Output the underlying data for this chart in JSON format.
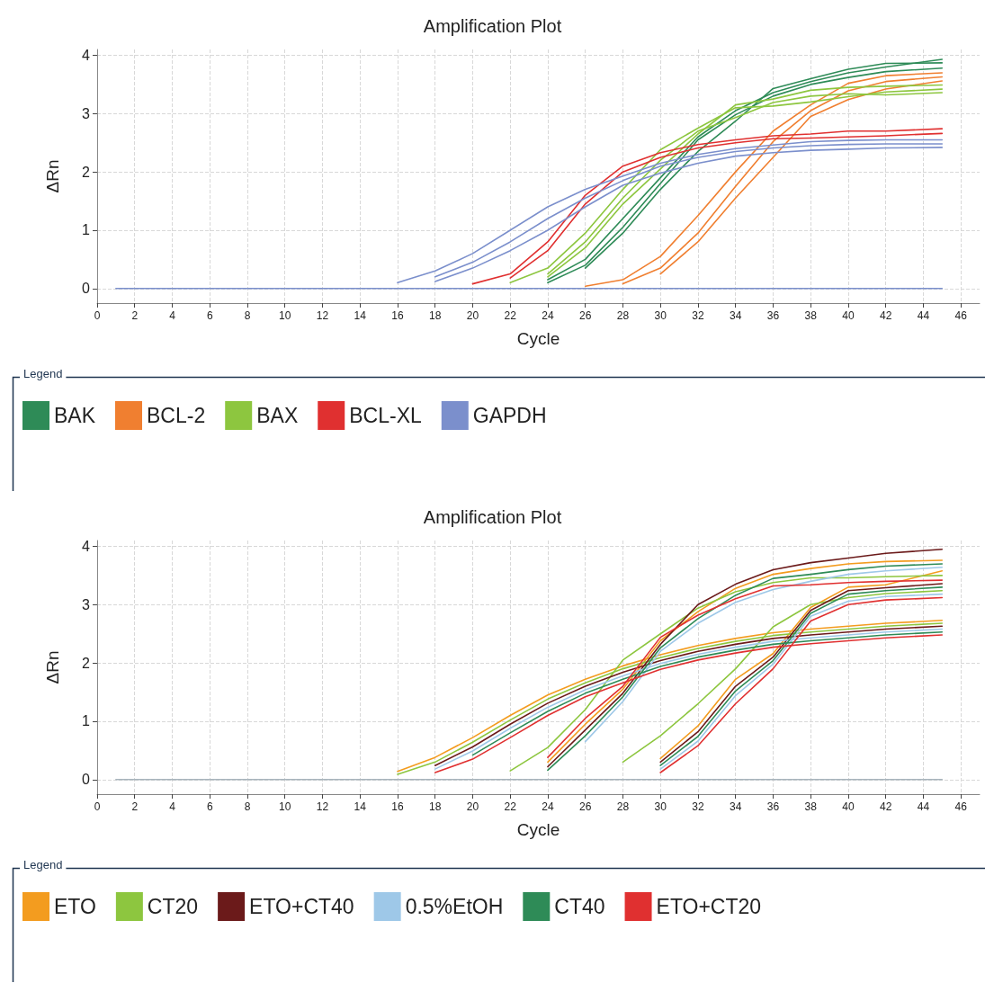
{
  "chart_data": [
    {
      "type": "line",
      "title": "Amplification Plot",
      "xlabel": "Cycle",
      "ylabel": "ΔRn",
      "legend_title": "Legend",
      "legend": "bottom",
      "grid": true,
      "marker": "none",
      "line_style": "solid",
      "xlim": [
        0,
        47
      ],
      "xticks": [
        0,
        2,
        4,
        6,
        8,
        10,
        12,
        14,
        16,
        18,
        20,
        22,
        24,
        26,
        28,
        30,
        32,
        34,
        36,
        38,
        40,
        42,
        44,
        46
      ],
      "ylim": [
        -0.25,
        4.1
      ],
      "yticks": [
        0,
        1,
        2,
        3,
        4
      ],
      "series": [
        {
          "color": "#7b8fcc",
          "x": [
            1,
            45
          ],
          "values": [
            0,
            0
          ]
        },
        {
          "name": "BAK",
          "color": "#2e8b57",
          "x": [
            24,
            26,
            28,
            30,
            32,
            34,
            36,
            38,
            40,
            42,
            45
          ],
          "values": [
            0.15,
            0.5,
            1.2,
            1.9,
            2.6,
            3.05,
            3.36,
            3.55,
            3.7,
            3.8,
            3.93
          ]
        },
        {
          "color": "#2e8b57",
          "x": [
            24,
            26,
            28,
            30,
            32,
            34,
            36,
            38,
            40,
            42,
            45
          ],
          "values": [
            0.1,
            0.4,
            1.05,
            1.8,
            2.55,
            2.98,
            3.3,
            3.5,
            3.62,
            3.72,
            3.78
          ]
        },
        {
          "color": "#2e8b57",
          "x": [
            26,
            28,
            30,
            32,
            34,
            36,
            38,
            40,
            42,
            45
          ],
          "values": [
            0.35,
            0.95,
            1.7,
            2.35,
            2.87,
            3.43,
            3.6,
            3.76,
            3.86,
            3.87
          ]
        },
        {
          "name": "BCL-2",
          "color": "#f07f30",
          "x": [
            26,
            28,
            30,
            32,
            34,
            36,
            38,
            40,
            42,
            45
          ],
          "values": [
            0.04,
            0.15,
            0.55,
            1.25,
            2.0,
            2.7,
            3.15,
            3.52,
            3.65,
            3.7
          ]
        },
        {
          "color": "#f07f30",
          "x": [
            28,
            30,
            32,
            34,
            36,
            38,
            40,
            42,
            45
          ],
          "values": [
            0.08,
            0.35,
            0.95,
            1.75,
            2.52,
            3.05,
            3.39,
            3.55,
            3.63
          ]
        },
        {
          "color": "#f07f30",
          "x": [
            30,
            32,
            34,
            36,
            38,
            40,
            42,
            45
          ],
          "values": [
            0.25,
            0.8,
            1.55,
            2.25,
            2.95,
            3.24,
            3.42,
            3.56
          ]
        },
        {
          "name": "BAX",
          "color": "#8dc63f",
          "x": [
            22,
            24,
            26,
            28,
            30,
            32,
            34,
            36,
            38,
            40,
            42,
            45
          ],
          "values": [
            0.1,
            0.35,
            0.95,
            1.7,
            2.38,
            2.75,
            3.1,
            3.13,
            3.2,
            3.29,
            3.37,
            3.42
          ]
        },
        {
          "color": "#8dc63f",
          "x": [
            24,
            26,
            28,
            30,
            32,
            34,
            36,
            38,
            40,
            42,
            45
          ],
          "values": [
            0.25,
            0.8,
            1.55,
            2.2,
            2.7,
            2.93,
            3.19,
            3.3,
            3.34,
            3.32,
            3.36
          ]
        },
        {
          "color": "#8dc63f",
          "x": [
            24,
            26,
            28,
            30,
            32,
            34,
            36,
            38,
            40,
            42,
            45
          ],
          "values": [
            0.2,
            0.7,
            1.45,
            2.05,
            2.65,
            3.15,
            3.25,
            3.4,
            3.45,
            3.47,
            3.49
          ]
        },
        {
          "name": "BCL-XL",
          "color": "#e03030",
          "x": [
            20,
            22,
            24,
            26,
            28,
            30,
            32,
            34,
            36,
            38,
            40,
            42,
            45
          ],
          "values": [
            0.08,
            0.25,
            0.8,
            1.6,
            2.1,
            2.33,
            2.47,
            2.55,
            2.62,
            2.65,
            2.7,
            2.7,
            2.74
          ]
        },
        {
          "color": "#e03030",
          "x": [
            22,
            24,
            26,
            28,
            30,
            32,
            34,
            36,
            38,
            40,
            42,
            45
          ],
          "values": [
            0.18,
            0.65,
            1.45,
            2.0,
            2.25,
            2.41,
            2.5,
            2.57,
            2.58,
            2.6,
            2.62,
            2.66
          ]
        },
        {
          "name": "GAPDH",
          "color": "#7b8fcc",
          "x": [
            16,
            18,
            20,
            22,
            24,
            26,
            28,
            30,
            32,
            34,
            36,
            38,
            40,
            42,
            45
          ],
          "values": [
            0.1,
            0.3,
            0.6,
            1.0,
            1.4,
            1.7,
            1.93,
            2.15,
            2.3,
            2.4,
            2.46,
            2.52,
            2.54,
            2.55,
            2.55
          ]
        },
        {
          "color": "#7b8fcc",
          "x": [
            18,
            20,
            22,
            24,
            26,
            28,
            30,
            32,
            34,
            36,
            38,
            40,
            42,
            45
          ],
          "values": [
            0.2,
            0.45,
            0.8,
            1.2,
            1.55,
            1.85,
            2.1,
            2.25,
            2.35,
            2.41,
            2.45,
            2.47,
            2.48,
            2.48
          ]
        },
        {
          "color": "#7b8fcc",
          "x": [
            18,
            20,
            22,
            24,
            26,
            28,
            30,
            32,
            34,
            36,
            38,
            40,
            42,
            45
          ],
          "values": [
            0.12,
            0.35,
            0.65,
            1.0,
            1.4,
            1.77,
            1.98,
            2.15,
            2.27,
            2.33,
            2.37,
            2.39,
            2.41,
            2.42
          ]
        }
      ]
    },
    {
      "type": "line",
      "title": "Amplification Plot",
      "xlabel": "Cycle",
      "ylabel": "ΔRn",
      "legend_title": "Legend",
      "legend": "bottom",
      "grid": true,
      "marker": "none",
      "line_style": "solid",
      "xlim": [
        0,
        47
      ],
      "xticks": [
        0,
        2,
        4,
        6,
        8,
        10,
        12,
        14,
        16,
        18,
        20,
        22,
        24,
        26,
        28,
        30,
        32,
        34,
        36,
        38,
        40,
        42,
        44,
        46
      ],
      "ylim": [
        -0.25,
        4.1
      ],
      "yticks": [
        0,
        1,
        2,
        3,
        4
      ],
      "series": [
        {
          "color": "#a8b4bc",
          "x": [
            1,
            45
          ],
          "values": [
            0,
            0
          ]
        },
        {
          "name": "ETO",
          "color": "#f39c1f",
          "x": [
            16,
            18,
            20,
            22,
            24,
            26,
            28,
            30,
            32,
            34,
            36,
            38,
            40,
            42,
            45
          ],
          "values": [
            0.14,
            0.38,
            0.72,
            1.1,
            1.45,
            1.72,
            1.95,
            2.14,
            2.3,
            2.42,
            2.52,
            2.58,
            2.63,
            2.68,
            2.73
          ]
        },
        {
          "color": "#f39c1f",
          "x": [
            24,
            26,
            28,
            30,
            32,
            34,
            36,
            38,
            40,
            42,
            45
          ],
          "values": [
            0.3,
            0.95,
            1.55,
            2.38,
            2.88,
            3.28,
            3.52,
            3.62,
            3.7,
            3.74,
            3.76
          ]
        },
        {
          "color": "#f39c1f",
          "x": [
            30,
            32,
            34,
            36,
            38,
            40,
            42,
            45
          ],
          "values": [
            0.36,
            0.92,
            1.72,
            2.16,
            2.95,
            3.3,
            3.34,
            3.58
          ]
        },
        {
          "name": "CT20",
          "color": "#8dc63f",
          "x": [
            16,
            18,
            20,
            22,
            24,
            26,
            28,
            30,
            32,
            34,
            36,
            38,
            40,
            42,
            45
          ],
          "values": [
            0.09,
            0.3,
            0.64,
            1.02,
            1.38,
            1.66,
            1.9,
            2.09,
            2.25,
            2.37,
            2.47,
            2.53,
            2.58,
            2.63,
            2.68
          ]
        },
        {
          "color": "#8dc63f",
          "x": [
            22,
            24,
            26,
            28,
            30,
            32,
            34,
            36,
            38,
            40,
            42,
            45
          ],
          "values": [
            0.15,
            0.55,
            1.2,
            2.05,
            2.5,
            2.94,
            3.22,
            3.38,
            3.46,
            3.46,
            3.48,
            3.5
          ]
        },
        {
          "color": "#8dc63f",
          "x": [
            28,
            30,
            32,
            34,
            36,
            38,
            40,
            42,
            45
          ],
          "values": [
            0.3,
            0.75,
            1.3,
            1.9,
            2.62,
            3.0,
            3.12,
            3.19,
            3.24
          ]
        },
        {
          "name": "ETO+CT40",
          "color": "#6b1a1a",
          "x": [
            18,
            20,
            22,
            24,
            26,
            28,
            30,
            32,
            34,
            36,
            38,
            40,
            42,
            45
          ],
          "values": [
            0.24,
            0.56,
            0.95,
            1.31,
            1.6,
            1.84,
            2.04,
            2.2,
            2.32,
            2.42,
            2.48,
            2.53,
            2.58,
            2.63
          ]
        },
        {
          "color": "#6b1a1a",
          "x": [
            24,
            26,
            28,
            30,
            32,
            34,
            36,
            38,
            40,
            42,
            45
          ],
          "values": [
            0.22,
            0.85,
            1.48,
            2.32,
            3.0,
            3.35,
            3.6,
            3.72,
            3.8,
            3.88,
            3.95
          ]
        },
        {
          "color": "#6b1a1a",
          "x": [
            30,
            32,
            34,
            36,
            38,
            40,
            42,
            45
          ],
          "values": [
            0.3,
            0.82,
            1.6,
            2.1,
            2.9,
            3.24,
            3.29,
            3.36
          ]
        },
        {
          "name": "0.5%EtOH",
          "color": "#9ec8e8",
          "x": [
            18,
            20,
            22,
            24,
            26,
            28,
            30,
            32,
            34,
            36,
            38,
            40,
            42,
            45
          ],
          "values": [
            0.18,
            0.49,
            0.88,
            1.24,
            1.54,
            1.78,
            1.99,
            2.15,
            2.27,
            2.37,
            2.43,
            2.48,
            2.53,
            2.58
          ]
        },
        {
          "color": "#9ec8e8",
          "x": [
            26,
            28,
            30,
            32,
            34,
            36,
            38,
            40,
            42,
            45
          ],
          "values": [
            0.65,
            1.34,
            2.2,
            2.68,
            3.04,
            3.26,
            3.4,
            3.52,
            3.58,
            3.64
          ]
        },
        {
          "color": "#9ec8e8",
          "x": [
            30,
            32,
            34,
            36,
            38,
            40,
            42,
            45
          ],
          "values": [
            0.18,
            0.66,
            1.44,
            1.98,
            2.8,
            3.06,
            3.14,
            3.18
          ]
        },
        {
          "name": "CT40",
          "color": "#2e8b57",
          "x": [
            20,
            22,
            24,
            26,
            28,
            30,
            32,
            34,
            36,
            38,
            40,
            42,
            45
          ],
          "values": [
            0.42,
            0.8,
            1.17,
            1.48,
            1.72,
            1.94,
            2.1,
            2.22,
            2.32,
            2.38,
            2.43,
            2.48,
            2.53
          ]
        },
        {
          "color": "#2e8b57",
          "x": [
            24,
            26,
            28,
            30,
            32,
            34,
            36,
            38,
            40,
            42,
            45
          ],
          "values": [
            0.16,
            0.75,
            1.42,
            2.26,
            2.76,
            3.16,
            3.45,
            3.52,
            3.6,
            3.66,
            3.7
          ]
        },
        {
          "color": "#2e8b57",
          "x": [
            30,
            32,
            34,
            36,
            38,
            40,
            42,
            45
          ],
          "values": [
            0.24,
            0.74,
            1.52,
            2.04,
            2.85,
            3.18,
            3.24,
            3.3
          ]
        },
        {
          "name": "ETO+CT20",
          "color": "#e03030",
          "x": [
            18,
            20,
            22,
            24,
            26,
            28,
            30,
            32,
            34,
            36,
            38,
            40,
            42,
            45
          ],
          "values": [
            0.12,
            0.35,
            0.72,
            1.1,
            1.42,
            1.66,
            1.89,
            2.05,
            2.17,
            2.27,
            2.33,
            2.38,
            2.43,
            2.48
          ]
        },
        {
          "color": "#e03030",
          "x": [
            24,
            26,
            28,
            30,
            32,
            34,
            36,
            38,
            40,
            42,
            45
          ],
          "values": [
            0.38,
            1.05,
            1.6,
            2.44,
            2.82,
            3.1,
            3.32,
            3.34,
            3.38,
            3.4,
            3.42
          ]
        },
        {
          "color": "#e03030",
          "x": [
            30,
            32,
            34,
            36,
            38,
            40,
            42,
            45
          ],
          "values": [
            0.12,
            0.58,
            1.3,
            1.9,
            2.72,
            3.0,
            3.08,
            3.12
          ]
        }
      ]
    }
  ]
}
